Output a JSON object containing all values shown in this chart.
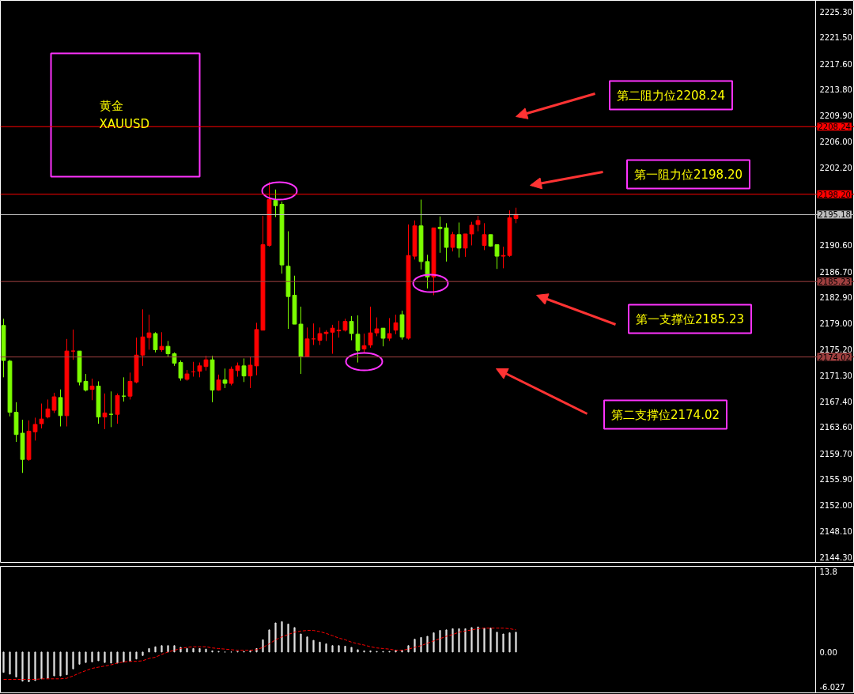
{
  "chart_data": [
    {
      "type": "candlestick",
      "title": "黄金\nXAUUSD",
      "categories": [
        null,
        null,
        null,
        null,
        null,
        null,
        null,
        null,
        null,
        null,
        null,
        null,
        null,
        null,
        null,
        null,
        null,
        null,
        null,
        null,
        null,
        null,
        null,
        null,
        null,
        null,
        null,
        null,
        null,
        null,
        null,
        null,
        null,
        null,
        null,
        null,
        null,
        null,
        null,
        null,
        null,
        null,
        null,
        null,
        null,
        null,
        null,
        null,
        null,
        null,
        null,
        null,
        null,
        null,
        null,
        null,
        null,
        null,
        null,
        null,
        null,
        null,
        null,
        null,
        null,
        null,
        null,
        null,
        null,
        null,
        null,
        null,
        null,
        null,
        null,
        null,
        null,
        null,
        null,
        null,
        null,
        null,
        null,
        null,
        null,
        null,
        null,
        null,
        null,
        null,
        null,
        null,
        null,
        null,
        null,
        null,
        null,
        null,
        null,
        null,
        null,
        null,
        null,
        null,
        null,
        null,
        null,
        null,
        null,
        null,
        null,
        null,
        null,
        null,
        null,
        null,
        null,
        null,
        null,
        null,
        null,
        null,
        null,
        null,
        null,
        null,
        null,
        null,
        null,
        null,
        null,
        null,
        null,
        null,
        null
      ],
      "ohlc": [
        [
          2178.7,
          2179.7,
          2171.0,
          2173.5
        ],
        [
          2173.4,
          2173.6,
          2165.2,
          2165.8
        ],
        [
          2165.8,
          2167.3,
          2161.4,
          2162.5
        ],
        [
          2162.7,
          2164.7,
          2156.8,
          2158.8
        ],
        [
          2158.8,
          2164.6,
          2158.6,
          2163.0
        ],
        [
          2162.9,
          2165.0,
          2161.6,
          2164.0
        ],
        [
          2164.1,
          2167.1,
          2163.4,
          2164.8
        ],
        [
          2165.1,
          2167.7,
          2164.9,
          2166.3
        ],
        [
          2166.1,
          2168.7,
          2165.7,
          2168.1
        ],
        [
          2168.0,
          2169.2,
          2163.7,
          2165.3
        ],
        [
          2165.3,
          2176.7,
          2163.7,
          2174.9
        ],
        [
          2174.9,
          2178.1,
          2173.6,
          2174.9
        ],
        [
          2174.9,
          2174.9,
          2169.8,
          2170.3
        ],
        [
          2170.4,
          2171.5,
          2168.9,
          2169.1
        ],
        [
          2169.2,
          2170.8,
          2167.6,
          2169.7
        ],
        [
          2169.7,
          2170.4,
          2164.1,
          2165.1
        ],
        [
          2165.1,
          2168.6,
          2163.3,
          2165.7
        ],
        [
          2165.5,
          2168.9,
          2163.6,
          2165.5
        ],
        [
          2165.5,
          2168.6,
          2164.1,
          2168.3
        ],
        [
          2168.2,
          2171.0,
          2167.4,
          2168.2
        ],
        [
          2168.2,
          2171.7,
          2167.7,
          2170.4
        ],
        [
          2170.3,
          2176.9,
          2170.1,
          2174.3
        ],
        [
          2174.3,
          2181.1,
          2172.7,
          2177.0
        ],
        [
          2176.9,
          2180.3,
          2175.1,
          2177.6
        ],
        [
          2177.5,
          2177.7,
          2174.7,
          2175.1
        ],
        [
          2175.1,
          2177.7,
          2174.8,
          2175.6
        ],
        [
          2175.6,
          2176.4,
          2174.0,
          2174.5
        ],
        [
          2174.5,
          2174.7,
          2172.7,
          2173.1
        ],
        [
          2173.2,
          2173.5,
          2170.5,
          2170.9
        ],
        [
          2170.7,
          2172.1,
          2170.5,
          2171.5
        ],
        [
          2171.8,
          2173.3,
          2171.1,
          2171.8
        ],
        [
          2171.9,
          2173.2,
          2171.0,
          2172.7
        ],
        [
          2172.6,
          2174.2,
          2172.0,
          2173.6
        ],
        [
          2173.6,
          2174.2,
          2167.3,
          2169.1
        ],
        [
          2169.1,
          2171.4,
          2169.0,
          2170.6
        ],
        [
          2170.6,
          2172.3,
          2169.4,
          2170.1
        ],
        [
          2170.1,
          2172.6,
          2169.8,
          2172.2
        ],
        [
          2172.0,
          2173.2,
          2171.1,
          2172.7
        ],
        [
          2172.7,
          2173.8,
          2170.3,
          2171.2
        ],
        [
          2171.2,
          2174.1,
          2169.4,
          2172.8
        ],
        [
          2172.7,
          2179.1,
          2171.3,
          2178.1
        ],
        [
          2178.0,
          2195.0,
          2178.0,
          2190.7
        ],
        [
          2190.6,
          2200.0,
          2190.4,
          2197.4
        ],
        [
          2197.3,
          2198.9,
          2194.8,
          2196.5
        ],
        [
          2196.7,
          2197.1,
          2186.4,
          2187.7
        ],
        [
          2187.5,
          2192.7,
          2178.2,
          2183.0
        ],
        [
          2183.2,
          2186.1,
          2178.9,
          2178.9
        ],
        [
          2178.9,
          2181.5,
          2171.5,
          2174.1
        ],
        [
          2174.1,
          2178.4,
          2174.0,
          2176.7
        ],
        [
          2176.7,
          2179.0,
          2175.8,
          2176.7
        ],
        [
          2176.5,
          2178.4,
          2175.8,
          2177.5
        ],
        [
          2177.5,
          2178.0,
          2176.4,
          2177.7
        ],
        [
          2177.7,
          2178.8,
          2174.5,
          2178.3
        ],
        [
          2177.9,
          2179.4,
          2176.9,
          2178.0
        ],
        [
          2178.0,
          2179.7,
          2177.8,
          2179.3
        ],
        [
          2179.3,
          2180.1,
          2176.5,
          2177.5
        ],
        [
          2177.4,
          2180.2,
          2173.2,
          2175.0
        ],
        [
          2175.2,
          2177.5,
          2174.6,
          2175.7
        ],
        [
          2175.8,
          2181.5,
          2175.4,
          2177.6
        ],
        [
          2177.6,
          2179.9,
          2177.1,
          2178.2
        ],
        [
          2178.3,
          2178.3,
          2175.6,
          2176.8
        ],
        [
          2176.8,
          2179.8,
          2176.4,
          2177.5
        ],
        [
          2178.0,
          2180.3,
          2177.4,
          2179.1
        ],
        [
          2180.3,
          2180.9,
          2176.6,
          2177.0
        ],
        [
          2176.8,
          2193.7,
          2176.6,
          2189.1
        ],
        [
          2189.0,
          2194.3,
          2188.5,
          2193.5
        ],
        [
          2193.5,
          2197.4,
          2187.0,
          2188.2
        ],
        [
          2188.2,
          2189.2,
          2184.2,
          2185.9
        ],
        [
          2185.9,
          2193.2,
          2183.2,
          2193.2
        ],
        [
          2193.3,
          2194.9,
          2189.5,
          2193.1
        ],
        [
          2193.2,
          2193.9,
          2188.2,
          2190.3
        ],
        [
          2190.3,
          2192.6,
          2189.7,
          2192.2
        ],
        [
          2192.2,
          2194.0,
          2188.8,
          2190.2
        ],
        [
          2190.2,
          2192.3,
          2188.9,
          2192.3
        ],
        [
          2192.3,
          2194.1,
          2190.6,
          2193.6
        ],
        [
          2193.7,
          2195.0,
          2192.7,
          2194.3
        ],
        [
          2190.6,
          2193.9,
          2189.9,
          2192.2
        ],
        [
          2192.2,
          2192.2,
          2190.4,
          2190.5
        ],
        [
          2190.7,
          2190.7,
          2187.1,
          2189.0
        ],
        [
          2189.0,
          2190.4,
          2187.2,
          2189.1
        ],
        [
          2189.1,
          2195.8,
          2188.9,
          2194.7
        ],
        [
          2194.6,
          2196.2,
          2193.9,
          2195.2
        ],
        null,
        null,
        null,
        null,
        null,
        null,
        null,
        null,
        null,
        null,
        null,
        null,
        null,
        null,
        null,
        null,
        null,
        null,
        null,
        null,
        null,
        null,
        null,
        null,
        null,
        null,
        null,
        null,
        null,
        null,
        null,
        null,
        null,
        null,
        null,
        null,
        null,
        null,
        null,
        null,
        null,
        null,
        null,
        null,
        null,
        null,
        null,
        null,
        null,
        null,
        null,
        null,
        null
      ],
      "colors": [
        "#7cfc00",
        "#7cfc00",
        "#7cfc00",
        "#7cfc00",
        "#ff0000",
        "#ff0000",
        "#ff0000",
        "#ff0000",
        "#ff0000",
        "#7cfc00",
        "#ff0000",
        "#ff0000",
        "#7cfc00",
        "#7cfc00",
        "#ff0000",
        "#7cfc00",
        "#ff0000",
        "#7cfc00",
        "#ff0000",
        "#7cfc00",
        "#ff0000",
        "#ff0000",
        "#ff0000",
        "#ff0000",
        "#7cfc00",
        "#ff0000",
        "#7cfc00",
        "#7cfc00",
        "#7cfc00",
        "#ff0000",
        "#ff0000",
        "#ff0000",
        "#ff0000",
        "#7cfc00",
        "#ff0000",
        "#7cfc00",
        "#ff0000",
        "#ff0000",
        "#7cfc00",
        "#ff0000",
        "#ff0000",
        "#ff0000",
        "#ff0000",
        "#7cfc00",
        "#7cfc00",
        "#7cfc00",
        "#7cfc00",
        "#7cfc00",
        "#ff0000",
        "#ff0000",
        "#ff0000",
        "#ff0000",
        "#ff0000",
        "#ff0000",
        "#ff0000",
        "#7cfc00",
        "#7cfc00",
        "#ff0000",
        "#ff0000",
        "#ff0000",
        "#7cfc00",
        "#ff0000",
        "#ff0000",
        "#7cfc00",
        "#ff0000",
        "#ff0000",
        "#7cfc00",
        "#7cfc00",
        "#ff0000",
        "#7cfc00",
        "#7cfc00",
        "#ff0000",
        "#7cfc00",
        "#ff0000",
        "#ff0000",
        "#ff0000",
        "#ff0000",
        "#7cfc00",
        "#7cfc00",
        "#ff0000",
        "#ff0000",
        "#ff0000",
        null,
        null,
        null,
        null,
        null,
        null,
        null,
        null,
        null,
        null,
        null,
        null,
        null,
        null,
        null,
        null,
        null,
        null,
        null,
        null,
        null,
        null,
        null,
        null,
        null,
        null,
        null,
        null,
        null,
        null,
        null,
        null,
        null,
        null,
        null,
        null,
        null,
        null,
        null,
        null,
        null,
        null,
        null,
        null,
        null,
        null,
        null,
        null,
        null,
        null,
        null,
        null,
        null
      ],
      "ylim": [
        2143.5,
        2227.0
      ],
      "yticks": [
        {
          "value": 2225.3,
          "label": "2225.30"
        },
        {
          "value": 2221.5,
          "label": "2221.50"
        },
        {
          "value": 2217.6,
          "label": "2217.60"
        },
        {
          "value": 2213.8,
          "label": "2213.80"
        },
        {
          "value": 2209.9,
          "label": "2209.90"
        },
        {
          "value": 2206.0,
          "label": "2206.00"
        },
        {
          "value": 2202.2,
          "label": "2202.20"
        },
        {
          "value": 2190.6,
          "label": "2190.60"
        },
        {
          "value": 2186.7,
          "label": "2186.70"
        },
        {
          "value": 2182.9,
          "label": "2182.90"
        },
        {
          "value": 2179.0,
          "label": "2179.00"
        },
        {
          "value": 2175.2,
          "label": "2175.20"
        },
        {
          "value": 2171.3,
          "label": "2171.30"
        },
        {
          "value": 2167.4,
          "label": "2167.40"
        },
        {
          "value": 2163.6,
          "label": "2163.60"
        },
        {
          "value": 2159.7,
          "label": "2159.70"
        },
        {
          "value": 2155.9,
          "label": "2155.90"
        },
        {
          "value": 2152.0,
          "label": "2152.00"
        },
        {
          "value": 2148.1,
          "label": "2148.10"
        },
        {
          "value": 2144.3,
          "label": "2144.30"
        }
      ],
      "ref_lines": [
        {
          "axis": "y",
          "value": 2208.24,
          "label": "2208.24",
          "color": "#ff0000"
        },
        {
          "axis": "y",
          "value": 2198.2,
          "label": "2198.20",
          "color": "#ff0000"
        },
        {
          "axis": "y",
          "value": 2195.18,
          "label": "2195.18",
          "color": "#c0c0c0"
        },
        {
          "axis": "y",
          "value": 2185.23,
          "label": "2185.23",
          "color": "#a04040"
        },
        {
          "axis": "y",
          "value": 2174.02,
          "label": "2174.02",
          "color": "#a04040"
        }
      ],
      "annotations": [
        "第二阻力位2208.24",
        "第一阻力位2198.20",
        "第一支撑位2185.23",
        "第二支撑位2174.02"
      ],
      "tick_labels": "y"
    },
    {
      "type": "bar",
      "categories": [
        null,
        null,
        null,
        null,
        null,
        null,
        null,
        null,
        null,
        null,
        null,
        null,
        null,
        null,
        null,
        null,
        null,
        null,
        null,
        null,
        null,
        null,
        null,
        null,
        null,
        null,
        null,
        null,
        null,
        null,
        null,
        null,
        null,
        null,
        null,
        null,
        null,
        null,
        null,
        null,
        null,
        null,
        null,
        null,
        null,
        null,
        null,
        null,
        null,
        null,
        null,
        null,
        null,
        null,
        null,
        null,
        null,
        null,
        null,
        null,
        null,
        null,
        null,
        null,
        null,
        null,
        null,
        null,
        null,
        null,
        null,
        null,
        null,
        null,
        null,
        null,
        null,
        null,
        null,
        null,
        null,
        null,
        null,
        null,
        null,
        null,
        null,
        null,
        null,
        null,
        null,
        null,
        null,
        null,
        null,
        null,
        null,
        null,
        null,
        null,
        null,
        null,
        null,
        null,
        null,
        null,
        null,
        null,
        null,
        null,
        null,
        null,
        null,
        null,
        null,
        null,
        null,
        null,
        null,
        null,
        null,
        null,
        null,
        null,
        null,
        null,
        null,
        null,
        null,
        null,
        null,
        null,
        null,
        null,
        null
      ],
      "series": [
        {
          "type": "bar",
          "color": "#e0e0e0",
          "values": [
            -3.5,
            -3.8,
            -4.3,
            -5.0,
            -5.1,
            -4.9,
            -4.6,
            -4.5,
            -4.1,
            -4.1,
            -3.9,
            -2.9,
            -2.1,
            -1.8,
            -1.7,
            -1.5,
            -1.8,
            -1.9,
            -1.9,
            -1.7,
            -1.6,
            -1.2,
            -0.6,
            0.6,
            0.9,
            1.1,
            1.1,
            1.1,
            0.8,
            0.6,
            0.6,
            0.6,
            0.5,
            0.2,
            0.1,
            0.0,
            0.0,
            0.1,
            0.1,
            0.2,
            0.6,
            2.1,
            3.8,
            5.0,
            5.2,
            4.8,
            4.2,
            3.1,
            2.6,
            2.0,
            1.7,
            1.4,
            1.1,
            1.1,
            1.0,
            0.8,
            0.4,
            0.2,
            0.2,
            0.1,
            0.1,
            0.1,
            0.3,
            0.3,
            1.1,
            2.2,
            2.5,
            2.7,
            3.3,
            3.7,
            3.8,
            4.0,
            4.0,
            4.0,
            4.2,
            4.3,
            4.1,
            4.1,
            3.4,
            3.1,
            3.3,
            3.4,
            null,
            null,
            null,
            null,
            null,
            null,
            null,
            null,
            null,
            null,
            null,
            null,
            null,
            null,
            null,
            null,
            null,
            null,
            null,
            null,
            null,
            null,
            null,
            null,
            null,
            null,
            null,
            null,
            null,
            null,
            null,
            null,
            null,
            null,
            null,
            null,
            null,
            null,
            null,
            null,
            null,
            null,
            null,
            null,
            null,
            null,
            null,
            null,
            null,
            null,
            null,
            null,
            null
          ]
        },
        {
          "type": "line",
          "color": "#ff0000",
          "line_style": "dashed",
          "values": [
            -4.7,
            -4.7,
            -4.7,
            -4.7,
            -4.7,
            -4.7,
            -4.6,
            -4.6,
            -4.6,
            -4.6,
            -4.5,
            -4.1,
            -3.6,
            -3.2,
            -2.8,
            -2.6,
            -2.4,
            -2.2,
            -1.9,
            -1.7,
            -1.6,
            -1.6,
            -1.5,
            -1.1,
            -0.9,
            -0.4,
            0.0,
            0.3,
            0.6,
            0.8,
            0.9,
            0.9,
            0.9,
            0.7,
            0.6,
            0.5,
            0.4,
            0.3,
            0.3,
            0.3,
            0.4,
            0.8,
            1.4,
            2.1,
            2.6,
            3.0,
            3.4,
            3.6,
            3.7,
            3.7,
            3.5,
            3.2,
            2.8,
            2.4,
            2.1,
            1.7,
            1.4,
            1.2,
            0.9,
            0.7,
            0.6,
            0.5,
            0.3,
            0.3,
            0.5,
            0.8,
            1.1,
            1.5,
            1.9,
            2.3,
            2.7,
            3.0,
            3.4,
            3.6,
            3.8,
            4.0,
            4.1,
            4.1,
            4.1,
            4.1,
            4.0,
            3.8,
            null,
            null,
            null,
            null,
            null,
            null,
            null,
            null,
            null,
            null,
            null,
            null,
            null,
            null,
            null,
            null,
            null,
            null,
            null,
            null,
            null,
            null,
            null,
            null,
            null,
            null,
            null,
            null,
            null,
            null,
            null,
            null,
            null,
            null,
            null,
            null,
            null,
            null,
            null,
            null,
            null,
            null,
            null,
            null,
            null,
            null,
            null,
            null,
            null,
            null,
            null,
            null,
            null
          ]
        }
      ],
      "ylim": [
        -7.0,
        14.7
      ],
      "yticks": [
        {
          "value": 13.8,
          "label": "13.8"
        },
        {
          "value": 0,
          "label": "0.00"
        },
        {
          "value": -6.027,
          "label": "-6.027"
        }
      ],
      "tick_labels": "y"
    }
  ]
}
